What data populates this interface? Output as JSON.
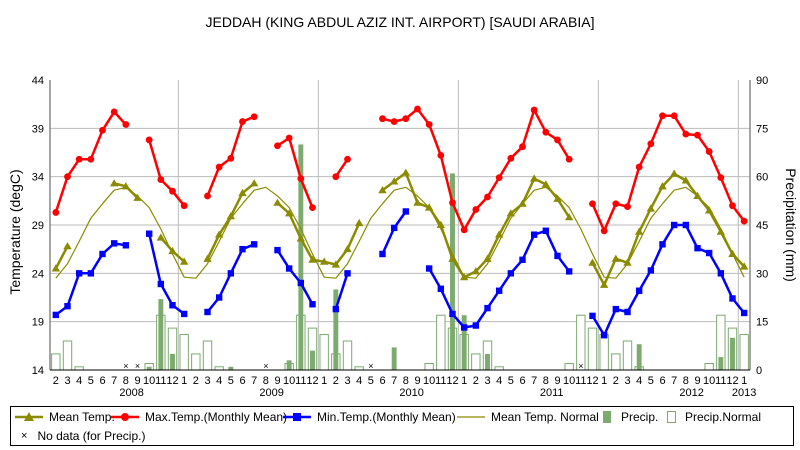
{
  "chart_data": {
    "type": "line",
    "title": "JEDDAH (KING ABDUL AZIZ INT. AIRPORT) [SAUDI ARABIA]",
    "ylabel": "Temperature (degC)",
    "y2label": "Precipitation (mm)",
    "ylim": [
      14,
      44
    ],
    "y2lim": [
      0,
      90
    ],
    "yticks": [
      "14",
      "19",
      "24",
      "29",
      "34",
      "39",
      "44"
    ],
    "y2ticks": [
      "0",
      "15",
      "30",
      "45",
      "60",
      "75",
      "90"
    ],
    "legend_position": "bottom",
    "x_month_labels": [
      "2",
      "3",
      "4",
      "5",
      "6",
      "7",
      "8",
      "9",
      "10",
      "11",
      "12",
      "1",
      "2",
      "3",
      "4",
      "5",
      "6",
      "7",
      "8",
      "9",
      "10",
      "11",
      "12",
      "1",
      "2",
      "3",
      "4",
      "5",
      "6",
      "7",
      "8",
      "9",
      "10",
      "11",
      "12",
      "1",
      "2",
      "3",
      "4",
      "5",
      "6",
      "7",
      "8",
      "9",
      "10",
      "11",
      "12",
      "1",
      "2",
      "3",
      "4",
      "5",
      "6",
      "7",
      "8",
      "9",
      "10",
      "11",
      "12",
      "1"
    ],
    "x_year_labels": [
      {
        "label": "2008",
        "index": 6.5
      },
      {
        "label": "2009",
        "index": 18.5
      },
      {
        "label": "2010",
        "index": 30.5
      },
      {
        "label": "2011",
        "index": 42.5
      },
      {
        "label": "2012",
        "index": 54.5
      },
      {
        "label": "2013",
        "index": 59
      }
    ],
    "series": [
      {
        "name": "Mean Temp.",
        "color": "#8b8b00",
        "marker": "triangle",
        "values": [
          24.5,
          26.8,
          null,
          null,
          null,
          33.3,
          33.0,
          31.8,
          null,
          27.7,
          26.3,
          25.2,
          null,
          25.5,
          28.0,
          29.9,
          32.3,
          33.3,
          null,
          31.3,
          30.2,
          27.6,
          25.4,
          25.2,
          24.9,
          26.5,
          29.2,
          null,
          32.6,
          33.5,
          34.4,
          31.3,
          30.8,
          29.0,
          25.5,
          23.6,
          24.2,
          25.5,
          28.0,
          30.2,
          31.2,
          33.8,
          33.2,
          31.7,
          29.8,
          null,
          25.1,
          22.8,
          25.5,
          25.1,
          28.3,
          30.7,
          33.0,
          34.3,
          33.6,
          32.0,
          30.5,
          28.3,
          26.0,
          24.7
        ]
      },
      {
        "name": "Max.Temp.(Monthly Mean)",
        "color": "#ff0000",
        "marker": "circle",
        "values": [
          30.3,
          34.0,
          35.8,
          35.8,
          38.8,
          40.7,
          39.4,
          null,
          37.8,
          33.7,
          32.5,
          31.0,
          null,
          32.0,
          35.0,
          35.9,
          39.7,
          40.2,
          null,
          37.2,
          38.0,
          33.8,
          30.8,
          null,
          34.0,
          35.8,
          null,
          null,
          40.0,
          39.7,
          40.0,
          41.0,
          39.4,
          36.2,
          31.3,
          28.5,
          30.6,
          31.9,
          33.9,
          35.9,
          37.1,
          40.9,
          38.6,
          37.8,
          35.8,
          null,
          31.2,
          28.4,
          31.2,
          30.9,
          35.0,
          37.4,
          40.3,
          40.3,
          38.4,
          38.3,
          36.6,
          33.9,
          31.0,
          29.4
        ]
      },
      {
        "name": "Min.Temp.(Monthly Mean)",
        "color": "#0000ff",
        "marker": "square",
        "values": [
          19.7,
          20.6,
          24.0,
          24.0,
          26.0,
          27.1,
          26.9,
          null,
          28.1,
          22.9,
          20.7,
          19.8,
          null,
          20.0,
          21.5,
          24.0,
          26.5,
          27.0,
          null,
          26.4,
          24.5,
          23.0,
          20.8,
          null,
          20.3,
          24.0,
          null,
          null,
          26.0,
          28.7,
          30.4,
          null,
          24.5,
          22.4,
          19.8,
          18.4,
          18.6,
          20.4,
          22.2,
          24.0,
          25.4,
          28.0,
          28.4,
          25.8,
          24.2,
          null,
          19.6,
          17.6,
          20.3,
          20.0,
          22.2,
          24.3,
          27.0,
          29.0,
          29.0,
          26.6,
          26.1,
          24.0,
          21.4,
          19.9
        ]
      },
      {
        "name": "Mean Temp. Normal",
        "color": "#8b8b00",
        "marker": "none",
        "values": [
          23.5,
          25.0,
          27.3,
          29.7,
          31.2,
          32.6,
          32.9,
          32.0,
          30.8,
          28.6,
          26.0,
          23.6,
          23.5,
          25.0,
          27.3,
          29.7,
          31.2,
          32.6,
          32.9,
          32.0,
          30.8,
          28.6,
          26.0,
          23.6,
          23.5,
          25.0,
          27.3,
          29.7,
          31.2,
          32.6,
          32.9,
          32.0,
          30.8,
          28.6,
          26.0,
          23.6,
          23.5,
          25.0,
          27.3,
          29.7,
          31.2,
          32.6,
          32.9,
          32.0,
          30.8,
          28.6,
          26.0,
          23.6,
          23.5,
          25.0,
          27.3,
          29.7,
          31.2,
          32.6,
          32.9,
          32.0,
          30.8,
          28.6,
          26.0,
          23.6
        ]
      },
      {
        "name": "Precip.",
        "color": "#7caa6f",
        "type": "bar",
        "values": [
          0,
          0,
          0,
          0,
          0,
          0,
          null,
          null,
          1,
          22,
          5,
          0,
          0,
          0,
          0,
          1,
          0,
          0,
          null,
          0,
          3,
          70,
          6,
          0,
          25,
          0,
          0,
          null,
          0,
          7,
          0,
          0,
          0,
          0,
          61,
          17,
          0,
          5,
          0,
          0,
          0,
          0,
          0,
          0,
          0,
          null,
          0,
          0,
          0,
          0,
          8,
          0,
          0,
          0,
          0,
          0,
          0,
          4,
          10,
          0
        ]
      },
      {
        "name": "Precip.Normal",
        "color": "#ffffff",
        "stroke": "#7caa6f",
        "type": "bar",
        "values": [
          5,
          9,
          1,
          0,
          0,
          0,
          0,
          0,
          2,
          17,
          13,
          11,
          5,
          9,
          1,
          0,
          0,
          0,
          0,
          0,
          2,
          17,
          13,
          11,
          5,
          9,
          1,
          0,
          0,
          0,
          0,
          0,
          2,
          17,
          13,
          11,
          5,
          9,
          1,
          0,
          0,
          0,
          0,
          0,
          2,
          17,
          13,
          11,
          5,
          9,
          1,
          0,
          0,
          0,
          0,
          0,
          2,
          17,
          13,
          11
        ]
      },
      {
        "name": "No data (for Precip.)",
        "marker": "x"
      }
    ]
  }
}
